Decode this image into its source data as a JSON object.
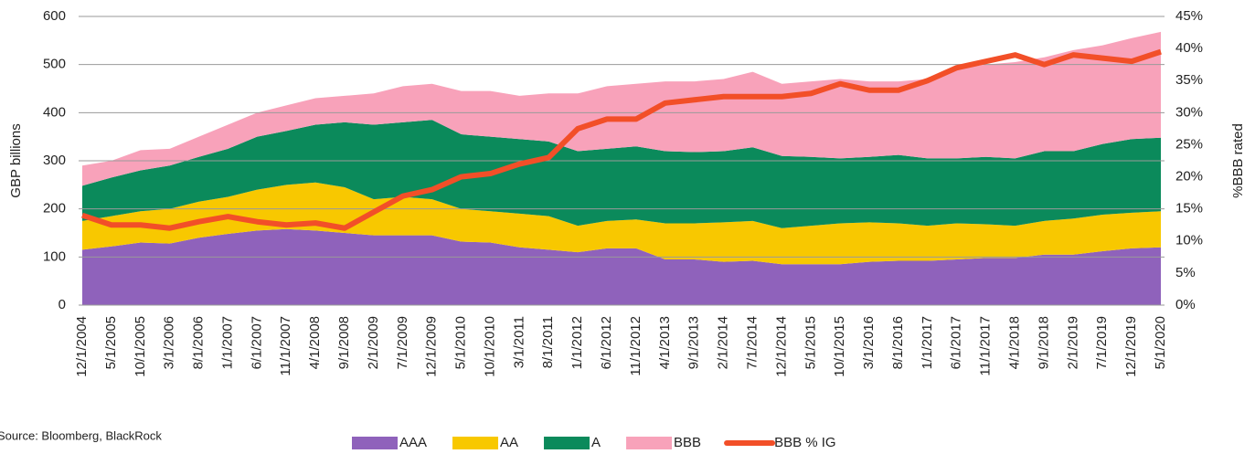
{
  "chart_data": {
    "type": "stacked-area-line",
    "source": "Source: Bloomberg, BlackRock",
    "ylabel": "GBP billions",
    "y2label": "%BBB rated",
    "categories": [
      "12/1/2004",
      "5/1/2005",
      "10/1/2005",
      "3/1/2006",
      "8/1/2006",
      "1/1/2007",
      "6/1/2007",
      "11/1/2007",
      "4/1/2008",
      "9/1/2008",
      "2/1/2009",
      "7/1/2009",
      "12/1/2009",
      "5/1/2010",
      "10/1/2010",
      "3/1/2011",
      "8/1/2011",
      "1/1/2012",
      "6/1/2012",
      "11/1/2012",
      "4/1/2013",
      "9/1/2013",
      "2/1/2014",
      "7/1/2014",
      "12/1/2014",
      "5/1/2015",
      "10/1/2015",
      "3/1/2016",
      "8/1/2016",
      "1/1/2017",
      "6/1/2017",
      "11/1/2017",
      "4/1/2018",
      "9/1/2018",
      "2/1/2019",
      "7/1/2019",
      "12/1/2019",
      "5/1/2020"
    ],
    "ylim": [
      0,
      600
    ],
    "yticks": [
      0,
      100,
      200,
      300,
      400,
      500,
      600
    ],
    "y2lim": [
      0,
      45
    ],
    "y2ticks": [
      {
        "value": 0,
        "label": "0%"
      },
      {
        "value": 5,
        "label": "5%"
      },
      {
        "value": 10,
        "label": "10%"
      },
      {
        "value": 15,
        "label": "15%"
      },
      {
        "value": 20,
        "label": "20%"
      },
      {
        "value": 25,
        "label": "25%"
      },
      {
        "value": 30,
        "label": "30%"
      },
      {
        "value": 35,
        "label": "35%"
      },
      {
        "value": 40,
        "label": "40%"
      },
      {
        "value": 45,
        "label": "45%"
      }
    ],
    "grid": true,
    "legend": "bottom",
    "series": [
      {
        "name": "AAA",
        "color": "#8f62bb",
        "kind": "area",
        "values": [
          115,
          122,
          130,
          128,
          140,
          148,
          155,
          158,
          155,
          150,
          145,
          145,
          145,
          132,
          130,
          120,
          115,
          110,
          118,
          118,
          95,
          95,
          90,
          92,
          85,
          85,
          85,
          90,
          92,
          92,
          95,
          98,
          98,
          105,
          105,
          112,
          118,
          120
        ]
      },
      {
        "name": "AA",
        "color": "#f8c800",
        "kind": "area",
        "values": [
          60,
          63,
          65,
          72,
          75,
          77,
          85,
          92,
          100,
          95,
          75,
          80,
          75,
          68,
          65,
          70,
          70,
          55,
          57,
          60,
          75,
          75,
          82,
          83,
          75,
          80,
          85,
          82,
          78,
          73,
          75,
          70,
          67,
          70,
          75,
          76,
          74,
          75
        ]
      },
      {
        "name": "A",
        "color": "#0b8a5b",
        "kind": "area",
        "values": [
          73,
          80,
          85,
          90,
          93,
          100,
          110,
          112,
          120,
          135,
          155,
          155,
          165,
          155,
          155,
          155,
          155,
          155,
          150,
          152,
          150,
          148,
          148,
          153,
          150,
          143,
          135,
          136,
          142,
          140,
          135,
          140,
          140,
          145,
          140,
          147,
          153,
          153
        ]
      },
      {
        "name": "BBB",
        "color": "#f8a2ba",
        "kind": "area",
        "values": [
          42,
          35,
          42,
          35,
          42,
          50,
          50,
          53,
          55,
          55,
          65,
          75,
          75,
          90,
          95,
          90,
          100,
          120,
          130,
          130,
          145,
          147,
          150,
          157,
          150,
          157,
          165,
          157,
          153,
          165,
          185,
          192,
          200,
          195,
          210,
          205,
          210,
          220
        ]
      },
      {
        "name": "BBB % IG",
        "color": "#f24f28",
        "kind": "line",
        "axis": "y2",
        "values": [
          14,
          12.5,
          12.5,
          12,
          13,
          13.8,
          13,
          12.5,
          12.8,
          12,
          14.5,
          17,
          18,
          20,
          20.5,
          22,
          23,
          27.5,
          29,
          29,
          31.5,
          32,
          32.5,
          32.5,
          32.5,
          33,
          34.5,
          33.5,
          33.5,
          35,
          37,
          38,
          39,
          37.5,
          39,
          38.5,
          38,
          39.5
        ]
      }
    ]
  }
}
